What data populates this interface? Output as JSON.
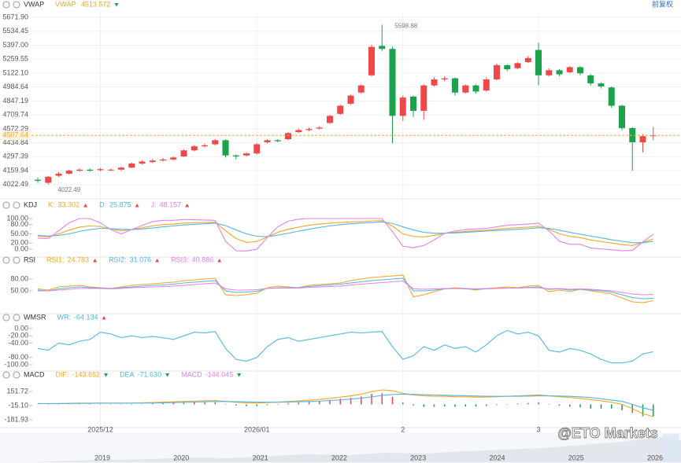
{
  "chart_data": [
    {
      "type": "candlestick",
      "title": "VWAP",
      "adjust_label": "前复权",
      "overlay": {
        "name": "VWAP:",
        "value": 4513.572,
        "color": "#f5a623",
        "trend": "down"
      },
      "up_color": "#f04848",
      "down_color": "#1aa34a",
      "price_line_color": "#f5a623",
      "grid": true,
      "categories": [
        null,
        null,
        null,
        null,
        null,
        null,
        "2025/12",
        null,
        null,
        null,
        null,
        null,
        null,
        null,
        null,
        null,
        null,
        null,
        null,
        null,
        null,
        "2026/01",
        null,
        null,
        null,
        null,
        null,
        null,
        null,
        null,
        null,
        null,
        null,
        null,
        null,
        "2",
        null,
        null,
        null,
        null,
        null,
        null,
        null,
        null,
        null,
        null,
        null,
        null,
        "3",
        null,
        null,
        null,
        null,
        null,
        null,
        null,
        null,
        null,
        null,
        null
      ],
      "open": [
        4070,
        4040,
        4110,
        4130,
        4160,
        4170,
        4165,
        4165,
        4170,
        4190,
        4230,
        4245,
        4260,
        4270,
        4300,
        4360,
        4400,
        4420,
        4460,
        4310,
        4310,
        4330,
        4440,
        4460,
        4470,
        4540,
        4560,
        4575,
        4630,
        4720,
        4820,
        4930,
        5100,
        5390,
        5360,
        4700,
        4890,
        4750,
        5000,
        5060,
        5070,
        4930,
        5000,
        4950,
        5060,
        5200,
        5170,
        5230,
        5350,
        5100,
        5150,
        5130,
        5180,
        5100,
        5020,
        4980,
        4800,
        4580,
        4440,
        4500
      ],
      "high": [
        4090,
        4110,
        4145,
        4170,
        4185,
        4180,
        4185,
        4180,
        4200,
        4240,
        4260,
        4275,
        4285,
        4300,
        4370,
        4410,
        4425,
        4470,
        4470,
        4320,
        4340,
        4430,
        4470,
        4470,
        4540,
        4575,
        4585,
        4600,
        4710,
        4810,
        4910,
        5010,
        5400,
        5598.88,
        5380,
        4900,
        4900,
        5010,
        5080,
        5090,
        5080,
        5010,
        5010,
        5080,
        5215,
        5210,
        5230,
        5290,
        5420,
        5170,
        5160,
        5190,
        5190,
        5110,
        5030,
        4990,
        4810,
        4590,
        4520,
        4590
      ],
      "low": [
        4040,
        4022.49,
        4100,
        4120,
        4150,
        4150,
        4155,
        4155,
        4160,
        4185,
        4220,
        4235,
        4250,
        4260,
        4295,
        4350,
        4390,
        4410,
        4290,
        4270,
        4300,
        4320,
        4430,
        4440,
        4460,
        4530,
        4550,
        4565,
        4620,
        4710,
        4810,
        4920,
        5090,
        5340,
        4430,
        4650,
        4690,
        4660,
        4990,
        5040,
        4900,
        4920,
        4920,
        4940,
        5050,
        5140,
        5160,
        5220,
        5000,
        5090,
        5090,
        5120,
        5100,
        5000,
        4970,
        4780,
        4560,
        4160,
        4340,
        4460
      ],
      "close": [
        4060,
        4100,
        4130,
        4160,
        4170,
        4160,
        4175,
        4170,
        4190,
        4230,
        4250,
        4260,
        4270,
        4290,
        4360,
        4400,
        4410,
        4460,
        4310,
        4300,
        4330,
        4420,
        4460,
        4450,
        4530,
        4560,
        4570,
        4585,
        4700,
        4800,
        4900,
        5000,
        5380,
        5360,
        4700,
        4880,
        4750,
        5000,
        5060,
        5070,
        4930,
        5000,
        4940,
        5060,
        5200,
        5160,
        5220,
        5270,
        5100,
        5150,
        5110,
        5180,
        5120,
        5020,
        4990,
        4800,
        4580,
        4440,
        4500,
        4507.64
      ],
      "ylim": [
        3905,
        5726
      ],
      "yticks": [
        {
          "value": 5671.9,
          "label": "5671.90"
        },
        5534.45,
        {
          "value": 5397,
          "label": "5397.00"
        },
        5259.55,
        {
          "value": 5122.1,
          "label": "5122.10"
        },
        4984.64,
        4847.19,
        4709.74,
        4572.29,
        4434.84,
        4297.39,
        4159.94,
        4022.49
      ],
      "navigator": {
        "labels": [
          "2019",
          "2020",
          "2021",
          "2022",
          "2023",
          "2024",
          "2025",
          "2026"
        ]
      }
    },
    {
      "type": "line",
      "title": "KDJ",
      "grid": false,
      "series": [
        {
          "name": "K:",
          "color": "#f5a623",
          "trend": "up",
          "values": [
            42,
            40,
            50,
            62,
            72,
            76,
            74,
            66,
            60,
            64,
            70,
            76,
            80,
            82,
            85,
            86,
            87,
            88,
            60,
            35,
            22,
            25,
            40,
            55,
            65,
            72,
            78,
            82,
            85,
            87,
            89,
            90,
            92,
            93,
            75,
            50,
            42,
            40,
            45,
            52,
            55,
            58,
            60,
            62,
            65,
            68,
            70,
            72,
            75,
            65,
            50,
            42,
            38,
            30,
            25,
            20,
            15,
            12,
            22,
            33.302
          ]
        },
        {
          "name": "D:",
          "color": "#4fb7e3",
          "trend": "up",
          "values": [
            45,
            43,
            45,
            50,
            58,
            64,
            68,
            67,
            65,
            64,
            66,
            69,
            73,
            76,
            79,
            81,
            83,
            85,
            77,
            63,
            50,
            42,
            41,
            46,
            52,
            59,
            65,
            71,
            76,
            80,
            83,
            85,
            87,
            89,
            84,
            73,
            63,
            55,
            52,
            52,
            53,
            55,
            57,
            59,
            61,
            63,
            65,
            67,
            70,
            68,
            62,
            55,
            49,
            43,
            37,
            31,
            26,
            21,
            21,
            25.875
          ]
        },
        {
          "name": "J:",
          "color": "#e680e6",
          "trend": "up",
          "values": [
            36,
            34,
            60,
            86,
            100,
            100,
            86,
            64,
            50,
            64,
            78,
            90,
            94,
            94,
            97,
            96,
            95,
            94,
            26,
            -5,
            -6,
            0,
            38,
            73,
            91,
            98,
            100,
            100,
            100,
            100,
            100,
            100,
            100,
            100,
            57,
            10,
            5,
            12,
            30,
            52,
            59,
            64,
            66,
            68,
            73,
            78,
            80,
            82,
            85,
            60,
            26,
            16,
            16,
            4,
            1,
            -2,
            -5,
            -4,
            24,
            48.157
          ]
        }
      ],
      "ylim": [
        -20.5,
        115.4
      ],
      "yticks": [
        {
          "value": 100,
          "label": "100.00"
        },
        {
          "value": 80,
          "label": "80.00"
        },
        {
          "value": 50,
          "label": "50.00"
        },
        {
          "value": 20,
          "label": "20.00"
        },
        {
          "value": 0,
          "label": "0.00"
        }
      ]
    },
    {
      "type": "line",
      "title": "RSI",
      "grid": false,
      "series": [
        {
          "name": "RSI1:",
          "color": "#f5a623",
          "trend": "up",
          "values": [
            55,
            52,
            60,
            62,
            64,
            60,
            58,
            56,
            60,
            64,
            66,
            68,
            70,
            72,
            76,
            78,
            80,
            82,
            40,
            38,
            40,
            44,
            58,
            62,
            60,
            58,
            64,
            66,
            68,
            70,
            76,
            80,
            84,
            86,
            88,
            90,
            35,
            40,
            48,
            55,
            58,
            56,
            52,
            56,
            58,
            60,
            58,
            62,
            64,
            48,
            52,
            48,
            54,
            50,
            46,
            42,
            32,
            22,
            20,
            24.783
          ]
        },
        {
          "name": "RSI2:",
          "color": "#4fb7e3",
          "trend": "up",
          "values": [
            52,
            50,
            55,
            58,
            60,
            58,
            57,
            56,
            58,
            60,
            62,
            64,
            65,
            67,
            70,
            72,
            74,
            76,
            50,
            46,
            47,
            49,
            56,
            58,
            58,
            58,
            61,
            63,
            65,
            67,
            70,
            73,
            76,
            78,
            80,
            82,
            50,
            50,
            52,
            55,
            56,
            55,
            54,
            55,
            56,
            57,
            57,
            59,
            60,
            54,
            55,
            52,
            54,
            52,
            50,
            47,
            40,
            33,
            30,
            31.076
          ]
        },
        {
          "name": "RSI3:",
          "color": "#e680e6",
          "trend": "up",
          "values": [
            50,
            50,
            52,
            54,
            56,
            56,
            56,
            55,
            56,
            58,
            59,
            60,
            61,
            62,
            64,
            66,
            68,
            70,
            55,
            52,
            52,
            53,
            56,
            57,
            57,
            57,
            59,
            60,
            61,
            62,
            65,
            67,
            69,
            71,
            73,
            75,
            55,
            54,
            55,
            56,
            56,
            56,
            55,
            56,
            56,
            57,
            57,
            58,
            58,
            55,
            56,
            54,
            55,
            54,
            52,
            50,
            46,
            42,
            40,
            40.886
          ]
        }
      ],
      "ylim": [
        0,
        94
      ],
      "yticks": [
        {
          "value": 80,
          "label": "80.00"
        },
        {
          "value": 50,
          "label": "50.00"
        }
      ]
    },
    {
      "type": "line",
      "title": "WMSR",
      "grid": false,
      "series": [
        {
          "name": "WR:",
          "color": "#4fb7e3",
          "trend": "up",
          "values": [
            -55,
            -60,
            -40,
            -45,
            -35,
            -30,
            -10,
            -15,
            -25,
            -20,
            -25,
            -22,
            -25,
            -30,
            -20,
            -10,
            -12,
            -8,
            -55,
            -85,
            -90,
            -80,
            -50,
            -30,
            -25,
            -35,
            -30,
            -25,
            -20,
            -15,
            -10,
            -12,
            -10,
            -8,
            -50,
            -85,
            -75,
            -50,
            -60,
            -45,
            -55,
            -50,
            -65,
            -45,
            -20,
            -5,
            -15,
            -10,
            -20,
            -60,
            -65,
            -55,
            -60,
            -70,
            -85,
            -95,
            -95,
            -90,
            -70,
            -64.134
          ]
        }
      ],
      "ylim": [
        -113,
        13
      ],
      "yticks": [
        {
          "value": 0,
          "label": "0.00"
        },
        {
          "value": -20,
          "label": "-20.00"
        },
        {
          "value": -40,
          "label": "-40.00"
        },
        {
          "value": -80,
          "label": "-80.00"
        },
        {
          "value": -100,
          "label": "-100.00"
        }
      ]
    },
    {
      "type": "line",
      "title": "MACD",
      "grid": false,
      "series": [
        {
          "name": "DIF:",
          "color": "#f5a623",
          "trend": "down",
          "values": [
            10,
            8,
            10,
            12,
            14,
            15,
            15,
            14,
            14,
            15,
            18,
            22,
            26,
            30,
            34,
            38,
            42,
            45,
            35,
            25,
            18,
            16,
            20,
            26,
            34,
            40,
            48,
            58,
            70,
            85,
            100,
            120,
            150,
            170,
            160,
            130,
            110,
            100,
            95,
            95,
            90,
            88,
            85,
            85,
            90,
            95,
            100,
            105,
            112,
            100,
            90,
            80,
            70,
            55,
            40,
            25,
            0,
            -50,
            -110,
            -143.652
          ]
        },
        {
          "name": "DEA",
          "color": "#4fb7e3",
          "trend": "down",
          "values": [
            8,
            8,
            9,
            10,
            11,
            12,
            13,
            13,
            13,
            14,
            15,
            16,
            18,
            21,
            24,
            27,
            30,
            33,
            34,
            32,
            29,
            26,
            25,
            25,
            27,
            30,
            33,
            38,
            44,
            52,
            62,
            73,
            88,
            105,
            116,
            119,
            117,
            114,
            110,
            107,
            104,
            101,
            98,
            95,
            94,
            94,
            95,
            97,
            100,
            100,
            98,
            94,
            88,
            80,
            66,
            50,
            35,
            0,
            -40,
            -71.63
          ],
          "value_labels": [
            null,
            null,
            null,
            null,
            null,
            null,
            null,
            null,
            null,
            null,
            null,
            null,
            null,
            null,
            null,
            null,
            null,
            null,
            null,
            null,
            null,
            null,
            null,
            null,
            null,
            null,
            null,
            null,
            null,
            null,
            null,
            null,
            null,
            null,
            null,
            null,
            null,
            null,
            null,
            null,
            null,
            null,
            null,
            null,
            null,
            null,
            null,
            null,
            null,
            null,
            null,
            null,
            null,
            null,
            null,
            null,
            null,
            null,
            null,
            "-71.630"
          ]
        },
        {
          "name": "MACD",
          "color": "#e680e6",
          "kind": "bar",
          "up_color": "#f04848",
          "down_color": "#1aa34a",
          "trend": "down",
          "values": [
            4,
            0,
            2,
            4,
            6,
            6,
            4,
            2,
            2,
            2,
            6,
            12,
            16,
            18,
            20,
            22,
            24,
            24,
            2,
            -14,
            -22,
            -20,
            -10,
            2,
            14,
            20,
            30,
            40,
            52,
            66,
            76,
            94,
            124,
            130,
            88,
            22,
            -14,
            -28,
            -30,
            -24,
            -28,
            -26,
            -26,
            -20,
            -8,
            2,
            10,
            16,
            24,
            0,
            -16,
            -28,
            -36,
            -50,
            -52,
            -50,
            -70,
            -100,
            -140,
            -144.045
          ]
        }
      ],
      "ylim": [
        -256,
        272
      ],
      "yticks": [
        151.72,
        {
          "value": -15.1,
          "label": "-15.10"
        },
        -181.93
      ]
    }
  ],
  "watermark": "@ETO Markets"
}
